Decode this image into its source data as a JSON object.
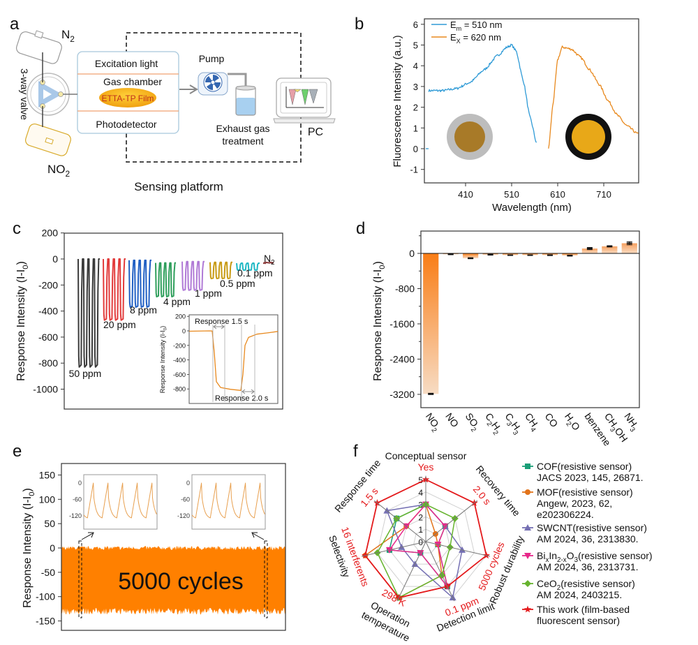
{
  "panel_labels": {
    "a": "a",
    "b": "b",
    "c": "c",
    "d": "d",
    "e": "e",
    "f": "f"
  },
  "diagram": {
    "n2": [
      "N",
      "2"
    ],
    "no2": [
      "NO",
      "2"
    ],
    "valve": "3-way valve",
    "excitation": "Excitation light",
    "chamber": "Gas chamber",
    "film": "ETTA-TP Film",
    "photodetector": "Photodetector",
    "pump": "Pump",
    "exhaust": [
      "Exhaust gas",
      "treatment"
    ],
    "pc": "PC",
    "caption": "Sensing platform"
  },
  "colors": {
    "orange": "#ff8000",
    "blue": "#2e9ad6",
    "spec_orange": "#e8891e",
    "red": "#e41a1c"
  },
  "chart_data": [
    {
      "id": "b",
      "type": "line",
      "xlabel": "Wavelength (nm)",
      "ylabel": "Fluorescence Intensity (a.u.)",
      "xticks": [
        410,
        510,
        610,
        710
      ],
      "yticks": [
        -1,
        0,
        1,
        2,
        3,
        4,
        5,
        6
      ],
      "xlim": [
        320,
        785
      ],
      "ylim": [
        -1.7,
        6.3
      ],
      "series": [
        {
          "name": [
            "E",
            "m",
            " = 510 nm"
          ],
          "color": "#2e9ad6",
          "x": [
            330,
            360,
            390,
            420,
            450,
            480,
            500,
            510,
            520,
            535,
            550,
            565
          ],
          "y": [
            2.8,
            2.8,
            2.9,
            3.2,
            3.8,
            4.5,
            4.9,
            5.0,
            4.7,
            3.3,
            1.5,
            0.2
          ]
        },
        {
          "name": [
            "E",
            "X",
            " = 620 nm"
          ],
          "color": "#e8891e",
          "x": [
            590,
            600,
            610,
            620,
            640,
            660,
            680,
            700,
            720,
            740,
            760,
            785
          ],
          "y": [
            0,
            2.2,
            4.3,
            4.9,
            4.8,
            4.4,
            3.8,
            3.1,
            2.3,
            1.6,
            1.1,
            0.7
          ]
        }
      ]
    },
    {
      "id": "c",
      "type": "line",
      "ylabel": [
        "Response Intensity (I-I",
        "0",
        ")"
      ],
      "yticks": [
        200,
        0,
        -200,
        -400,
        -600,
        -800,
        -1000
      ],
      "ylim": [
        -1150,
        200
      ],
      "groups": [
        {
          "label": "50 ppm",
          "top": 0,
          "min": -830,
          "color": "#3a3a3a"
        },
        {
          "label": "20 ppm",
          "top": 0,
          "min": -470,
          "color": "#e23b3b"
        },
        {
          "label": "8 ppm",
          "top": -10,
          "min": -370,
          "color": "#2160c4"
        },
        {
          "label": "4 ppm",
          "top": -30,
          "min": -290,
          "color": "#2e9e5b"
        },
        {
          "label": "1 ppm",
          "top": -20,
          "min": -240,
          "color": "#b07ad6"
        },
        {
          "label": "0.5 ppm",
          "top": -25,
          "min": -150,
          "color": "#c79a12"
        },
        {
          "label": "0.1 ppm",
          "top": -32,
          "min": -86,
          "color": "#1fb8c4"
        },
        {
          "label": [
            "N",
            "2"
          ],
          "top": -30,
          "min": -30,
          "color": "#8b3a3a"
        }
      ],
      "inset": {
        "ylabel": [
          "Response Intensity (I-I",
          "0",
          ")"
        ],
        "yticks": [
          200,
          0,
          -200,
          -400,
          -600,
          -800
        ],
        "baseline": 0,
        "min": -820,
        "response_label": "Response 1.5 s",
        "recovery_label": "Response 2.0 s"
      }
    },
    {
      "id": "d",
      "type": "bar",
      "ylabel": [
        "Response Intensity (I-I",
        "0",
        ")"
      ],
      "yticks": [
        0,
        -800,
        -1600,
        -2400,
        -3200
      ],
      "ylim": [
        -3500,
        500
      ],
      "categories": [
        [
          "NO",
          "2"
        ],
        [
          "NO"
        ],
        [
          "SO",
          "2"
        ],
        [
          "C",
          "2",
          "H",
          "2"
        ],
        [
          "C",
          "3",
          "H",
          "3"
        ],
        [
          "CH",
          "4"
        ],
        [
          "CO"
        ],
        [
          "H",
          "2",
          "O"
        ],
        [
          "benzene"
        ],
        [
          "CH",
          "3",
          "OH"
        ],
        [
          "NH",
          "3"
        ]
      ],
      "values": [
        -3190,
        -20,
        -110,
        -30,
        -40,
        -40,
        -40,
        -50,
        110,
        160,
        230
      ],
      "errors": [
        15,
        10,
        12,
        10,
        8,
        8,
        10,
        12,
        25,
        15,
        35
      ]
    },
    {
      "id": "e",
      "type": "area",
      "ylabel": [
        "Response Intensity (I-I",
        "0",
        ")"
      ],
      "yticks": [
        150,
        100,
        50,
        0,
        -50,
        -100,
        -150
      ],
      "ylim": [
        -170,
        172
      ],
      "band": {
        "upper": 0,
        "lower": -128
      },
      "annotation": "5000 cycles",
      "inset_yticks": [
        0,
        -60,
        -120
      ],
      "inset_cycle": {
        "peak": 0,
        "drop": -50,
        "min": -128,
        "cycles_shown": 5
      }
    },
    {
      "id": "f",
      "type": "radar",
      "rticks": [
        0,
        1,
        2,
        3,
        4,
        5
      ],
      "axes": [
        {
          "name": "Conceptual sensor",
          "value_label": "Yes"
        },
        {
          "name": "Recovery time",
          "value_label": "2.0 s"
        },
        {
          "name": "Robust durability",
          "value_label": "5000 cycles"
        },
        {
          "name": "Detection limit",
          "value_label": "0.1 ppm"
        },
        {
          "name": [
            "Operation",
            "temperature"
          ],
          "value_label": "298 K"
        },
        {
          "name": "Selectivity",
          "value_label": "16 interferents"
        },
        {
          "name": "Response time",
          "value_label": "1.5 s"
        }
      ],
      "series": [
        {
          "label": [
            "COF(resistive sensor)"
          ],
          "ref": [
            "JACS 2023, 145, 26871."
          ],
          "color": "#1a9e77",
          "marker": "square",
          "values": [
            3,
            2,
            1,
            4,
            1,
            3,
            3
          ]
        },
        {
          "label": [
            "MOF(resistive sensor)"
          ],
          "ref": [
            "Angew, 2023, 62,",
            "e202306224."
          ],
          "color": "#e2731a",
          "marker": "circle",
          "values": [
            3,
            1,
            1,
            3,
            5,
            5,
            2
          ]
        },
        {
          "label": [
            "SWCNT(resistive sensor)"
          ],
          "ref": [
            "AM 2024, 36, 2313830."
          ],
          "color": "#7570b3",
          "marker": "triangle",
          "values": [
            3,
            2,
            3,
            5,
            2,
            2,
            4
          ]
        },
        {
          "label": [
            "Bi",
            "x",
            "In",
            "2-x",
            "O",
            "3",
            "(resistive sensor)"
          ],
          "ref": [
            "AM 2024, 36, 2313731."
          ],
          "color": "#e7298a",
          "marker": "triangle-down",
          "values": [
            3,
            2,
            1,
            4,
            1,
            3,
            2
          ]
        },
        {
          "label": [
            "CeO",
            "2",
            "(resistive sensor)"
          ],
          "ref": [
            "AM 2024, 2403215."
          ],
          "color": "#66b32e",
          "marker": "diamond",
          "values": [
            3,
            3,
            2,
            3,
            5,
            4,
            3
          ]
        },
        {
          "label": [
            "This work (film-based"
          ],
          "ref": [
            "fluorescent sensor)"
          ],
          "color": "#e41a1c",
          "marker": "star",
          "values": [
            5,
            5,
            5,
            4,
            5,
            5,
            5
          ]
        }
      ]
    }
  ]
}
